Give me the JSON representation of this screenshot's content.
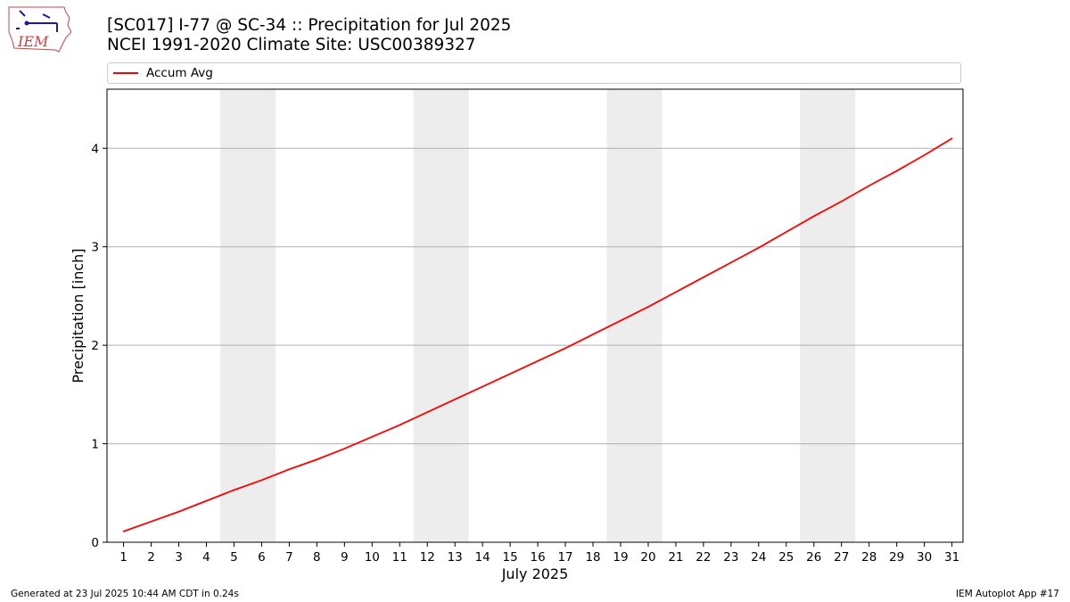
{
  "logo": {
    "text": "IEM",
    "icon": "iowa-state-weather-logo-icon"
  },
  "header": {
    "title_line1": "[SC017] I-77 @ SC-34  :: Precipitation for Jul 2025",
    "title_line2": "NCEI 1991-2020 Climate Site: USC00389327"
  },
  "footer": {
    "generated": "Generated at 23 Jul 2025 10:44 AM CDT in 0.24s",
    "app": "IEM Autoplot App #17"
  },
  "chart_data": {
    "type": "line",
    "xlabel": "July 2025",
    "ylabel": "Precipitation [inch]",
    "x": [
      1,
      2,
      3,
      4,
      5,
      6,
      7,
      8,
      9,
      10,
      11,
      12,
      13,
      14,
      15,
      16,
      17,
      18,
      19,
      20,
      21,
      22,
      23,
      24,
      25,
      26,
      27,
      28,
      29,
      30,
      31
    ],
    "xlim": [
      0.4,
      31.4
    ],
    "ylim": [
      0,
      4.6
    ],
    "yticks": [
      0,
      1,
      2,
      3,
      4
    ],
    "grid": "horizontal",
    "legend_position": "top",
    "weekend_bands": [
      [
        4.5,
        6.5
      ],
      [
        11.5,
        13.5
      ],
      [
        18.5,
        20.5
      ],
      [
        25.5,
        27.5
      ]
    ],
    "series": [
      {
        "name": "Accum Avg",
        "color": "#ff0000",
        "values": [
          0.11,
          0.21,
          0.31,
          0.42,
          0.53,
          0.63,
          0.74,
          0.84,
          0.95,
          1.07,
          1.19,
          1.32,
          1.45,
          1.58,
          1.71,
          1.84,
          1.97,
          2.11,
          2.25,
          2.39,
          2.54,
          2.69,
          2.84,
          2.99,
          3.15,
          3.31,
          3.46,
          3.62,
          3.77,
          3.93,
          4.1
        ]
      }
    ],
    "colors": {
      "weekend_band": "#ededed",
      "grid": "#b0b0b0"
    }
  }
}
